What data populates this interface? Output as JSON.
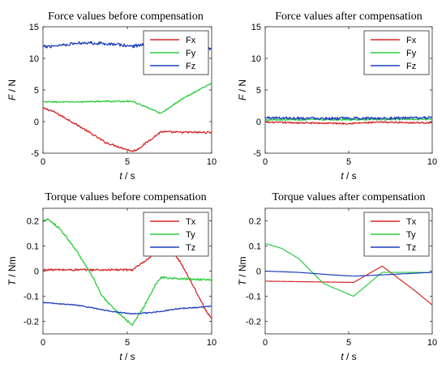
{
  "colors": {
    "x": "#d62728",
    "y": "#2ecc40",
    "z": "#1f3fbf",
    "axis": "#262626"
  },
  "xlabel_italic": "t",
  "xlabel_rest": " / s",
  "chart_data": [
    {
      "type": "line",
      "title": "Force values before compensation",
      "ylabel_italic": "F",
      "ylabel_rest": " / N",
      "xlim": [
        0,
        10
      ],
      "ylim": [
        -5,
        15
      ],
      "xticks": [
        0,
        5,
        10
      ],
      "xtick_labels": [
        "0",
        "5",
        "10"
      ],
      "yticks": [
        -5,
        0,
        5,
        10,
        15
      ],
      "ytick_labels": [
        "-5",
        "0",
        "5",
        "10",
        "15"
      ],
      "legend_position": "top-right",
      "series": [
        {
          "name": "Fx",
          "color_key": "x",
          "noise": 0.15,
          "points": [
            [
              0,
              2.1
            ],
            [
              0.3,
              1.9
            ],
            [
              0.6,
              1.6
            ],
            [
              1.5,
              0.3
            ],
            [
              2.5,
              -1.3
            ],
            [
              3.7,
              -3.3
            ],
            [
              5.3,
              -4.7
            ],
            [
              5.6,
              -4.4
            ],
            [
              7,
              -1.6
            ],
            [
              8,
              -1.7
            ],
            [
              10,
              -1.7
            ]
          ]
        },
        {
          "name": "Fy",
          "color_key": "y",
          "noise": 0.1,
          "points": [
            [
              0,
              3.1
            ],
            [
              2,
              3.1
            ],
            [
              3.5,
              3.2
            ],
            [
              5.3,
              3.2
            ],
            [
              7,
              1.3
            ],
            [
              8.2,
              3.5
            ],
            [
              10,
              6.1
            ]
          ]
        },
        {
          "name": "Fz",
          "color_key": "z",
          "noise": 0.25,
          "points": [
            [
              0,
              11.8
            ],
            [
              1,
              12.1
            ],
            [
              2.5,
              12.5
            ],
            [
              4,
              12.3
            ],
            [
              5.3,
              11.9
            ],
            [
              6.2,
              12.3
            ],
            [
              7,
              12.4
            ],
            [
              8.5,
              12.3
            ],
            [
              10,
              11.5
            ]
          ]
        }
      ]
    },
    {
      "type": "line",
      "title": "Force values after compensation",
      "ylabel_italic": "F",
      "ylabel_rest": " / N",
      "xlim": [
        0,
        10
      ],
      "ylim": [
        -5,
        15
      ],
      "xticks": [
        0,
        5,
        10
      ],
      "xtick_labels": [
        "0",
        "5",
        "10"
      ],
      "yticks": [
        -5,
        0,
        5,
        10,
        15
      ],
      "ytick_labels": [
        "-5",
        "0",
        "5",
        "10",
        "15"
      ],
      "legend_position": "top-right",
      "series": [
        {
          "name": "Fx",
          "color_key": "x",
          "noise": 0.12,
          "points": [
            [
              0,
              -0.1
            ],
            [
              2,
              -0.2
            ],
            [
              5,
              -0.3
            ],
            [
              7,
              -0.1
            ],
            [
              10,
              -0.2
            ]
          ]
        },
        {
          "name": "Fy",
          "color_key": "y",
          "noise": 0.12,
          "points": [
            [
              0,
              0.3
            ],
            [
              5,
              0.3
            ],
            [
              10,
              0.4
            ]
          ]
        },
        {
          "name": "Fz",
          "color_key": "z",
          "noise": 0.2,
          "points": [
            [
              0,
              0.6
            ],
            [
              5,
              0.5
            ],
            [
              10,
              0.6
            ]
          ]
        }
      ]
    },
    {
      "type": "line",
      "title": "Torque values before compensation",
      "ylabel_italic": "T",
      "ylabel_rest": " / Nm",
      "xlim": [
        0,
        10
      ],
      "ylim": [
        -0.25,
        0.25
      ],
      "xticks": [
        0,
        5,
        10
      ],
      "xtick_labels": [
        "0",
        "5",
        "10"
      ],
      "yticks": [
        -0.2,
        -0.1,
        0,
        0.1,
        0.2
      ],
      "ytick_labels": [
        "-0.2",
        "-0.1",
        "0",
        "0.1",
        "0.2"
      ],
      "legend_position": "top-right",
      "series": [
        {
          "name": "Tx",
          "color_key": "x",
          "noise": 0.004,
          "points": [
            [
              0,
              0.005
            ],
            [
              2,
              0.005
            ],
            [
              5.3,
              0.005
            ],
            [
              6.3,
              0.05
            ],
            [
              7,
              0.09
            ],
            [
              7.5,
              0.1
            ],
            [
              8.2,
              0.03
            ],
            [
              9,
              -0.07
            ],
            [
              9.6,
              -0.15
            ],
            [
              10,
              -0.19
            ]
          ]
        },
        {
          "name": "Ty",
          "color_key": "y",
          "noise": 0.004,
          "points": [
            [
              0,
              0.2
            ],
            [
              0.3,
              0.205
            ],
            [
              1,
              0.17
            ],
            [
              2,
              0.08
            ],
            [
              3,
              -0.03
            ],
            [
              3.5,
              -0.1
            ],
            [
              4.5,
              -0.17
            ],
            [
              5.3,
              -0.215
            ],
            [
              6,
              -0.14
            ],
            [
              6.7,
              -0.05
            ],
            [
              7,
              -0.025
            ],
            [
              8,
              -0.03
            ],
            [
              10,
              -0.035
            ]
          ]
        },
        {
          "name": "Tz",
          "color_key": "z",
          "noise": 0.002,
          "points": [
            [
              0,
              -0.125
            ],
            [
              2,
              -0.135
            ],
            [
              4,
              -0.16
            ],
            [
              5.3,
              -0.17
            ],
            [
              6.5,
              -0.165
            ],
            [
              8,
              -0.15
            ],
            [
              10,
              -0.14
            ]
          ]
        }
      ]
    },
    {
      "type": "line",
      "title": "Torque values after compensation",
      "ylabel_italic": "T",
      "ylabel_rest": " / Nm",
      "xlim": [
        0,
        10
      ],
      "ylim": [
        -0.25,
        0.25
      ],
      "xticks": [
        0,
        5,
        10
      ],
      "xtick_labels": [
        "0",
        "5",
        "10"
      ],
      "yticks": [
        -0.2,
        -0.1,
        0,
        0.1,
        0.2
      ],
      "ytick_labels": [
        "-0.2",
        "-0.1",
        "0",
        "0.1",
        "0.2"
      ],
      "legend_position": "top-right",
      "series": [
        {
          "name": "Tx",
          "color_key": "x",
          "noise": 0,
          "points": [
            [
              0,
              -0.04
            ],
            [
              2,
              -0.042
            ],
            [
              5.3,
              -0.045
            ],
            [
              7,
              0.02
            ],
            [
              8,
              -0.03
            ],
            [
              9,
              -0.08
            ],
            [
              10,
              -0.135
            ]
          ]
        },
        {
          "name": "Ty",
          "color_key": "y",
          "noise": 0,
          "points": [
            [
              0,
              0.11
            ],
            [
              1,
              0.09
            ],
            [
              2,
              0.05
            ],
            [
              3.5,
              -0.05
            ],
            [
              5.3,
              -0.1
            ],
            [
              7,
              -0.005
            ],
            [
              8,
              -0.005
            ],
            [
              10,
              -0.005
            ]
          ]
        },
        {
          "name": "Tz",
          "color_key": "z",
          "noise": 0,
          "points": [
            [
              0,
              0.0
            ],
            [
              2,
              -0.005
            ],
            [
              4,
              -0.015
            ],
            [
              5.3,
              -0.02
            ],
            [
              7,
              -0.015
            ],
            [
              8.5,
              -0.01
            ],
            [
              10,
              -0.005
            ]
          ]
        }
      ]
    }
  ]
}
